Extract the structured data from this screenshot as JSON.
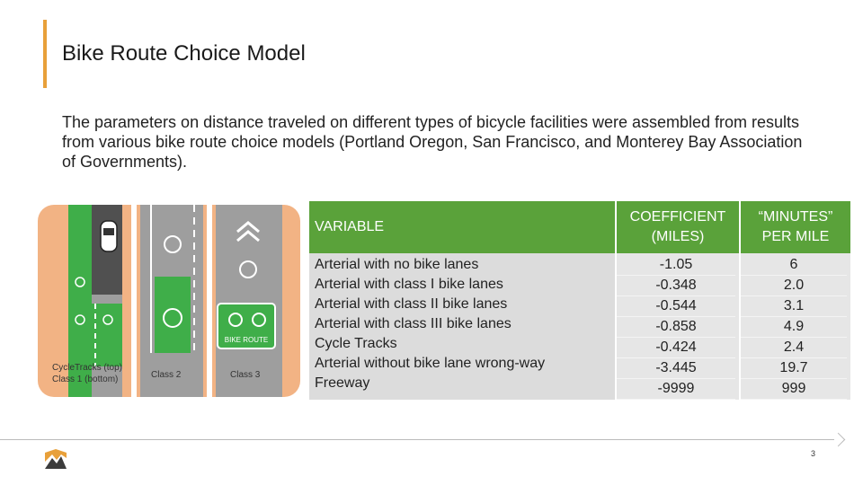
{
  "slide": {
    "title": "Bike Route Choice Model",
    "description": "The parameters on distance traveled on different types of bicycle facilities were assembled from results from various bike route choice models (Portland Oregon, San Francisco, and Monterey Bay Association of Governments).",
    "page_number": "3"
  },
  "illustration": {
    "caption_left_1": "CycleTracks (top)",
    "caption_left_2": "Class 1 (bottom)",
    "caption_mid": "Class 2",
    "caption_right": "Class 3",
    "sign_text": "BIKE ROUTE"
  },
  "table": {
    "headers": {
      "variable": "VARIABLE",
      "coefficient_1": "COEFFICIENT",
      "coefficient_2": "(MILES)",
      "minutes_1": "“MINUTES”",
      "minutes_2": "PER MILE"
    },
    "rows": [
      {
        "variable": "Arterial with no bike lanes",
        "coefficient": "-1.05",
        "minutes": "6"
      },
      {
        "variable": "Arterial with class I bike lanes",
        "coefficient": "-0.348",
        "minutes": "2.0"
      },
      {
        "variable": "Arterial with class II bike lanes",
        "coefficient": "-0.544",
        "minutes": "3.1"
      },
      {
        "variable": "Arterial with class III bike lanes",
        "coefficient": "-0.858",
        "minutes": "4.9"
      },
      {
        "variable": "Cycle Tracks",
        "coefficient": "-0.424",
        "minutes": "2.4"
      },
      {
        "variable": "Arterial without bike lane wrong-way",
        "coefficient": "-3.445",
        "minutes": "19.7"
      },
      {
        "variable": "Freeway",
        "coefficient": "-9999",
        "minutes": "999"
      }
    ]
  },
  "colors": {
    "accent": "#e8a03a",
    "header_green": "#5aa23a",
    "lane_green": "#3fae49",
    "illustration_bg": "#f2b384"
  }
}
